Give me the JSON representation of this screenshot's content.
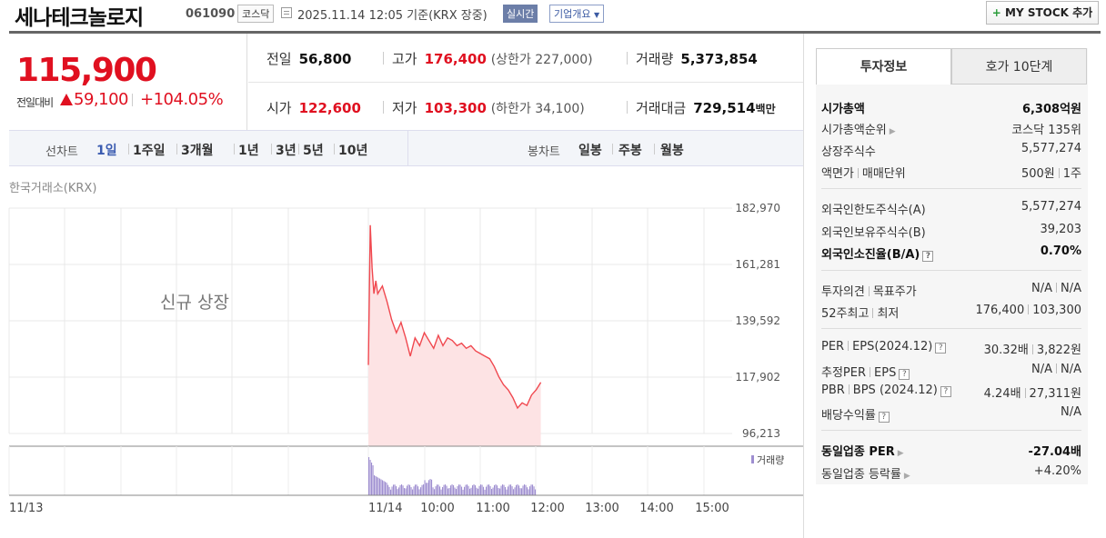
{
  "header": {
    "company": "세나테크놀로지",
    "code": "061090",
    "market": "코스닥",
    "datetime": "2025.11.14 12:05 기준(KRX 장중)",
    "realtime": "실시간",
    "overview": "기업개요",
    "mystock": "MY STOCK 추가",
    "mystock_plus": "+"
  },
  "price": {
    "current": "115,900",
    "change_label": "전일대비",
    "change": "59,100",
    "change_pct": "+104.05%"
  },
  "stats": {
    "prev_label": "전일",
    "prev": "56,800",
    "high_label": "고가",
    "high": "176,400",
    "high_sub": "(상한가 227,000)",
    "vol_label": "거래량",
    "vol": "5,373,854",
    "open_label": "시가",
    "open": "122,600",
    "low_label": "저가",
    "low": "103,300",
    "low_sub": "(하한가 34,100)",
    "amt_label": "거래대금",
    "amt": "729,514",
    "amt_unit": "백만"
  },
  "tabs": {
    "line_label": "선차트",
    "line_items": [
      "1일",
      "1주일",
      "3개월",
      "1년",
      "3년",
      "5년",
      "10년"
    ],
    "active": "1일",
    "candle_label": "봉차트",
    "candle_items": [
      "일봉",
      "주봉",
      "월봉"
    ]
  },
  "chart": {
    "source": "한국거래소(KRX)",
    "new_listing": "신규 상장",
    "vol_legend": "거래량",
    "colors": {
      "line": "#f0484f",
      "fill": "#fde3e4",
      "volume": "#9e8ed0"
    }
  },
  "chart_data": {
    "type": "area",
    "title": "",
    "xlabel": "",
    "ylabel": "",
    "y_ticks": [
      "182,970",
      "161,281",
      "139,592",
      "117,902",
      "96,213"
    ],
    "ylim": [
      96213,
      182970
    ],
    "x_ticks": [
      "11/13",
      "11/14",
      "10:00",
      "11:00",
      "12:00",
      "13:00",
      "14:00",
      "15:00"
    ],
    "series": [
      {
        "x": [
          "09:00",
          "09:02",
          "09:04",
          "09:06",
          "09:08",
          "09:10",
          "09:15",
          "09:20",
          "09:25",
          "09:30",
          "09:35",
          "09:40",
          "09:45",
          "09:50",
          "09:55",
          "10:00",
          "10:05",
          "10:10",
          "10:15",
          "10:20",
          "10:25",
          "10:30",
          "10:35",
          "10:40",
          "10:45",
          "10:50",
          "10:55",
          "11:00",
          "11:05",
          "11:10",
          "11:15",
          "11:20",
          "11:25",
          "11:30",
          "11:35",
          "11:40",
          "11:45",
          "11:50",
          "11:55",
          "12:00",
          "12:05"
        ],
        "values": [
          122600,
          176400,
          160000,
          150000,
          155000,
          150000,
          153000,
          147000,
          140000,
          135000,
          139000,
          133000,
          126000,
          133000,
          130000,
          135000,
          132000,
          129000,
          134000,
          130000,
          133000,
          132000,
          130000,
          131000,
          129000,
          130000,
          128000,
          127000,
          126000,
          125000,
          122000,
          118000,
          115000,
          113000,
          110000,
          106000,
          108000,
          107000,
          111000,
          113000,
          115900
        ]
      }
    ],
    "volume_note": "intraday volume bars, spike at open then declining",
    "grid": true
  },
  "panel": {
    "tab1": "투자정보",
    "tab2": "호가 10단계",
    "rows": {
      "mcap_k": "시가총액",
      "mcap_v": "6,308억원",
      "mcap_rank_k": "시가총액순위",
      "mcap_rank_v": "코스닥 135위",
      "shares_k": "상장주식수",
      "shares_v": "5,577,274",
      "par_k1": "액면가",
      "par_k2": "매매단위",
      "par_v1": "500원",
      "par_v2": "1주",
      "foreign_limit_k": "외국인한도주식수(A)",
      "foreign_limit_v": "5,577,274",
      "foreign_hold_k": "외국인보유주식수(B)",
      "foreign_hold_v": "39,203",
      "foreign_ratio_k": "외국인소진율(B/A)",
      "foreign_ratio_v": "0.70%",
      "opinion_k1": "투자의견",
      "opinion_k2": "목표주가",
      "opinion_v1": "N/A",
      "opinion_v2": "N/A",
      "w52_k1": "52주최고",
      "w52_k2": "최저",
      "w52_v1": "176,400",
      "w52_v2": "103,300",
      "per_k1": "PER",
      "per_k2": "EPS(2024.12)",
      "per_v1": "30.32배",
      "per_v2": "3,822원",
      "eper_k1": "추정PER",
      "eper_k2": "EPS",
      "eper_v1": "N/A",
      "eper_v2": "N/A",
      "pbr_k1": "PBR",
      "pbr_k2": "BPS (2024.12)",
      "pbr_v1": "4.24배",
      "pbr_v2": "27,311원",
      "div_k": "배당수익률",
      "div_v": "N/A",
      "sector_per_k": "동일업종 PER",
      "sector_per_v": "-27.04배",
      "sector_chg_k": "동일업종 등락률",
      "sector_chg_v": "+4.20%"
    }
  }
}
